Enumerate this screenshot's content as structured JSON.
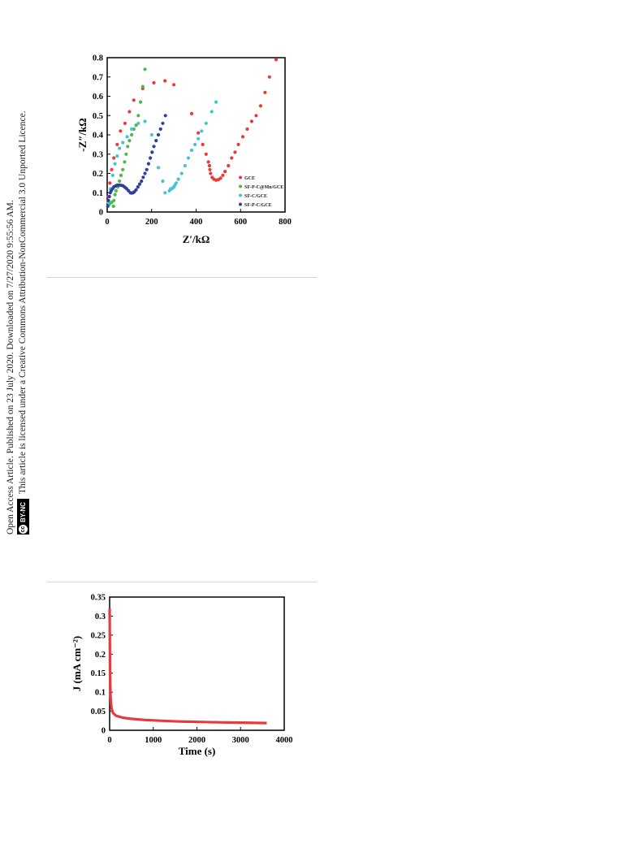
{
  "side_notice": {
    "line1": "Open Access Article. Published on 23 July 2020. Downloaded on 7/27/2020 9:55:56 AM.",
    "line2": "This article is licensed under a Creative Commons Attribution-NonCommercial 3.0 Unported Licence.",
    "badge_cc": "cc",
    "badge_text": "BY-NC"
  },
  "chart_data": [
    {
      "type": "scatter",
      "xlabel": "Z′/kΩ",
      "ylabel": "-Z″/kΩ",
      "xlim": [
        0,
        800
      ],
      "ylim": [
        0,
        0.8
      ],
      "xticks": [
        "0",
        "200",
        "400",
        "600",
        "800"
      ],
      "yticks": [
        "0",
        "0.1",
        "0.2",
        "0.3",
        "0.4",
        "0.5",
        "0.6",
        "0.7",
        "0.8"
      ],
      "legend_position": "inside-right",
      "series": [
        {
          "name": "GCE",
          "color": "#e8393b",
          "points": [
            [
              5,
              0.08
            ],
            [
              12,
              0.15
            ],
            [
              20,
              0.22
            ],
            [
              30,
              0.28
            ],
            [
              45,
              0.35
            ],
            [
              60,
              0.42
            ],
            [
              80,
              0.46
            ],
            [
              100,
              0.52
            ],
            [
              120,
              0.58
            ],
            [
              160,
              0.64
            ],
            [
              210,
              0.67
            ],
            [
              260,
              0.68
            ],
            [
              300,
              0.66
            ],
            [
              380,
              0.51
            ],
            [
              410,
              0.41
            ],
            [
              430,
              0.35
            ],
            [
              445,
              0.3
            ],
            [
              455,
              0.26
            ],
            [
              460,
              0.24
            ],
            [
              462,
              0.22
            ],
            [
              465,
              0.2
            ],
            [
              472,
              0.18
            ],
            [
              480,
              0.17
            ],
            [
              490,
              0.165
            ],
            [
              500,
              0.168
            ],
            [
              510,
              0.175
            ],
            [
              520,
              0.19
            ],
            [
              530,
              0.21
            ],
            [
              545,
              0.24
            ],
            [
              560,
              0.28
            ],
            [
              575,
              0.31
            ],
            [
              590,
              0.35
            ],
            [
              610,
              0.39
            ],
            [
              630,
              0.43
            ],
            [
              650,
              0.47
            ],
            [
              670,
              0.5
            ],
            [
              690,
              0.55
            ],
            [
              710,
              0.62
            ],
            [
              730,
              0.7
            ],
            [
              760,
              0.79
            ]
          ]
        },
        {
          "name": "SF-P-C@Mn/GCE",
          "color": "#4db848",
          "points": [
            [
              10,
              0.04
            ],
            [
              20,
              0.05
            ],
            [
              28,
              0.03
            ],
            [
              30,
              0.06
            ],
            [
              35,
              0.09
            ],
            [
              40,
              0.11
            ],
            [
              48,
              0.13
            ],
            [
              55,
              0.16
            ],
            [
              62,
              0.19
            ],
            [
              70,
              0.22
            ],
            [
              78,
              0.26
            ],
            [
              85,
              0.3
            ],
            [
              92,
              0.34
            ],
            [
              100,
              0.37
            ],
            [
              110,
              0.4
            ],
            [
              120,
              0.43
            ],
            [
              130,
              0.45
            ],
            [
              140,
              0.5
            ],
            [
              150,
              0.57
            ],
            [
              160,
              0.65
            ],
            [
              170,
              0.74
            ]
          ]
        },
        {
          "name": "SF-C/GCE",
          "color": "#44c4d2",
          "points": [
            [
              5,
              0.05
            ],
            [
              15,
              0.12
            ],
            [
              25,
              0.19
            ],
            [
              35,
              0.25
            ],
            [
              45,
              0.29
            ],
            [
              55,
              0.33
            ],
            [
              70,
              0.36
            ],
            [
              90,
              0.39
            ],
            [
              110,
              0.43
            ],
            [
              140,
              0.46
            ],
            [
              170,
              0.47
            ],
            [
              200,
              0.4
            ],
            [
              230,
              0.23
            ],
            [
              250,
              0.16
            ],
            [
              260,
              0.1
            ],
            [
              280,
              0.11
            ],
            [
              285,
              0.12
            ],
            [
              290,
              0.12
            ],
            [
              295,
              0.125
            ],
            [
              300,
              0.13
            ],
            [
              305,
              0.14
            ],
            [
              310,
              0.15
            ],
            [
              320,
              0.17
            ],
            [
              335,
              0.2
            ],
            [
              350,
              0.24
            ],
            [
              365,
              0.28
            ],
            [
              380,
              0.32
            ],
            [
              395,
              0.35
            ],
            [
              410,
              0.38
            ],
            [
              425,
              0.42
            ],
            [
              445,
              0.46
            ],
            [
              470,
              0.52
            ],
            [
              490,
              0.57
            ]
          ]
        },
        {
          "name": "SF-P-C/GCE",
          "color": "#2e3f9e",
          "points": [
            [
              3,
              0.03
            ],
            [
              6,
              0.06
            ],
            [
              10,
              0.08
            ],
            [
              14,
              0.1
            ],
            [
              18,
              0.11
            ],
            [
              24,
              0.12
            ],
            [
              30,
              0.13
            ],
            [
              38,
              0.135
            ],
            [
              46,
              0.14
            ],
            [
              55,
              0.14
            ],
            [
              64,
              0.138
            ],
            [
              72,
              0.135
            ],
            [
              80,
              0.128
            ],
            [
              88,
              0.12
            ],
            [
              96,
              0.11
            ],
            [
              104,
              0.1
            ],
            [
              110,
              0.098
            ],
            [
              116,
              0.1
            ],
            [
              122,
              0.105
            ],
            [
              130,
              0.115
            ],
            [
              138,
              0.13
            ],
            [
              146,
              0.145
            ],
            [
              154,
              0.16
            ],
            [
              162,
              0.18
            ],
            [
              170,
              0.2
            ],
            [
              178,
              0.22
            ],
            [
              186,
              0.25
            ],
            [
              194,
              0.28
            ],
            [
              202,
              0.31
            ],
            [
              210,
              0.34
            ],
            [
              220,
              0.37
            ],
            [
              230,
              0.4
            ],
            [
              240,
              0.43
            ],
            [
              250,
              0.46
            ],
            [
              262,
              0.5
            ]
          ]
        }
      ]
    },
    {
      "type": "line",
      "xlabel": "Time (s)",
      "ylabel": "J (mA cm⁻²)",
      "xlim": [
        0,
        4000
      ],
      "ylim": [
        0,
        0.35
      ],
      "xticks": [
        "0",
        "1000",
        "2000",
        "3000",
        "4000"
      ],
      "yticks": [
        "0",
        "0.05",
        "0.1",
        "0.15",
        "0.2",
        "0.25",
        "0.3",
        "0.35"
      ],
      "series": [
        {
          "color": "#e8393b",
          "points": [
            [
              0,
              0.32
            ],
            [
              5,
              0.22
            ],
            [
              10,
              0.15
            ],
            [
              20,
              0.09
            ],
            [
              40,
              0.058
            ],
            [
              80,
              0.045
            ],
            [
              150,
              0.038
            ],
            [
              300,
              0.033
            ],
            [
              500,
              0.03
            ],
            [
              800,
              0.027
            ],
            [
              1200,
              0.025
            ],
            [
              1600,
              0.023
            ],
            [
              2000,
              0.022
            ],
            [
              2500,
              0.021
            ],
            [
              3000,
              0.02
            ],
            [
              3600,
              0.019
            ]
          ]
        }
      ]
    }
  ]
}
